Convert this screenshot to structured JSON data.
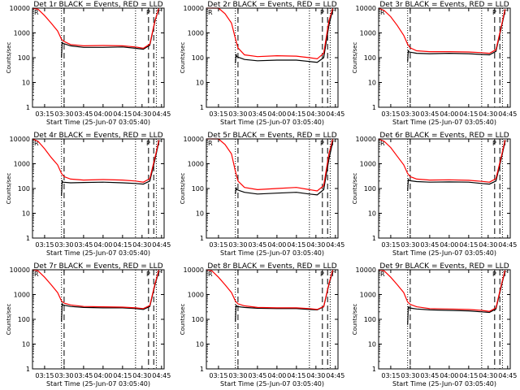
{
  "figure": {
    "ylabel": "Counts/sec",
    "xlabel": "Start Time (25-Jun-07 03:05:40)",
    "x_tick_labels": [
      "03:15",
      "03:30",
      "03:45",
      "04:00",
      "04:15",
      "04:30",
      "04:45"
    ],
    "y_tick_labels": [
      "1",
      "10",
      "100",
      "1000",
      "10000"
    ],
    "series_colors": {
      "events": "#000000",
      "lld": "#ff0000"
    }
  },
  "chart_data": [
    {
      "type": "line",
      "title": "Det 1r BLACK = Events, RED = LLD",
      "xlabel": "Start Time (25-Jun-07 03:05:40)",
      "ylabel": "Counts/sec",
      "yscale": "log",
      "ylim": [
        1,
        10000
      ],
      "xlim": [
        "03:05:40",
        "04:47:00"
      ],
      "x_ticks": [
        "03:15",
        "03:30",
        "03:45",
        "04:00",
        "04:15",
        "04:30",
        "04:45"
      ],
      "corner_markers": [
        "R",
        "P",
        "T"
      ],
      "series": [
        {
          "color": "black",
          "x": [
            "03:05:40",
            "03:27",
            "03:28",
            "03:28:30",
            "03:29",
            "03:35",
            "03:45",
            "04:00",
            "04:15",
            "04:25",
            "04:31",
            "04:36",
            "04:40",
            "04:43"
          ],
          "values": [
            null,
            null,
            100,
            430,
            380,
            300,
            260,
            260,
            270,
            240,
            220,
            320,
            3000,
            10000
          ]
        },
        {
          "color": "red",
          "x": [
            "03:05:40",
            "03:10",
            "03:15",
            "03:20",
            "03:25",
            "03:28",
            "03:30",
            "03:35",
            "03:45",
            "04:00",
            "04:15",
            "04:25",
            "04:31",
            "04:36",
            "04:40",
            "04:43"
          ],
          "values": [
            10000,
            9000,
            5000,
            2500,
            1200,
            550,
            450,
            340,
            300,
            310,
            300,
            270,
            240,
            350,
            3200,
            10000
          ]
        }
      ]
    },
    {
      "type": "line",
      "title": "Det 2r BLACK = Events, RED = LLD",
      "xlabel": "Start Time (25-Jun-07 03:05:40)",
      "ylabel": "Counts/sec",
      "yscale": "log",
      "ylim": [
        1,
        10000
      ],
      "xlim": [
        "03:05:40",
        "04:47:00"
      ],
      "x_ticks": [
        "03:15",
        "03:30",
        "03:45",
        "04:00",
        "04:15",
        "04:30",
        "04:45"
      ],
      "corner_markers": [
        "R",
        "P",
        "T"
      ],
      "series": [
        {
          "color": "black",
          "x": [
            "03:05:40",
            "03:27",
            "03:28",
            "03:28:30",
            "03:29",
            "03:35",
            "03:45",
            "04:00",
            "04:15",
            "04:25",
            "04:31",
            "04:36",
            "04:40",
            "04:43"
          ],
          "values": [
            null,
            null,
            60,
            140,
            110,
            85,
            75,
            80,
            80,
            70,
            65,
            100,
            2000,
            9000
          ]
        },
        {
          "color": "red",
          "x": [
            "03:05:40",
            "03:10",
            "03:15",
            "03:20",
            "03:25",
            "03:28",
            "03:30",
            "03:35",
            "03:45",
            "04:00",
            "04:15",
            "04:25",
            "04:31",
            "04:36",
            "04:40",
            "04:43"
          ],
          "values": [
            10000,
            10000,
            10000,
            6000,
            2500,
            600,
            250,
            130,
            110,
            120,
            115,
            100,
            90,
            150,
            3000,
            10000
          ]
        }
      ]
    },
    {
      "type": "line",
      "title": "Det 3r BLACK = Events, RED = LLD",
      "xlabel": "Start Time (25-Jun-07 03:05:40)",
      "ylabel": "Counts/sec",
      "yscale": "log",
      "ylim": [
        1,
        10000
      ],
      "xlim": [
        "03:05:40",
        "04:47:00"
      ],
      "x_ticks": [
        "03:15",
        "03:30",
        "03:45",
        "04:00",
        "04:15",
        "04:30",
        "04:45"
      ],
      "corner_markers": [
        "R",
        "P",
        "T"
      ],
      "series": [
        {
          "color": "black",
          "x": [
            "03:05:40",
            "03:27",
            "03:28",
            "03:28:30",
            "03:29",
            "03:35",
            "03:45",
            "04:00",
            "04:15",
            "04:25",
            "04:31",
            "04:36",
            "04:40",
            "04:43"
          ],
          "values": [
            null,
            null,
            70,
            200,
            170,
            150,
            145,
            150,
            145,
            135,
            130,
            180,
            1500,
            8000
          ]
        },
        {
          "color": "red",
          "x": [
            "03:05:40",
            "03:10",
            "03:15",
            "03:20",
            "03:25",
            "03:28",
            "03:30",
            "03:35",
            "03:45",
            "04:00",
            "04:15",
            "04:25",
            "04:31",
            "04:36",
            "04:40",
            "04:43"
          ],
          "values": [
            10000,
            8000,
            4500,
            2000,
            800,
            350,
            250,
            190,
            175,
            175,
            170,
            160,
            150,
            210,
            1700,
            9000
          ]
        }
      ]
    },
    {
      "type": "line",
      "title": "Det 4r BLACK = Events, RED = LLD",
      "xlabel": "Start Time (25-Jun-07 03:05:40)",
      "ylabel": "Counts/sec",
      "yscale": "log",
      "ylim": [
        1,
        10000
      ],
      "xlim": [
        "03:05:40",
        "04:47:00"
      ],
      "x_ticks": [
        "03:15",
        "03:30",
        "03:45",
        "04:00",
        "04:15",
        "04:30",
        "04:45"
      ],
      "corner_markers": [
        "R",
        "P",
        "T"
      ],
      "series": [
        {
          "color": "black",
          "x": [
            "03:05:40",
            "03:27",
            "03:28",
            "03:28:30",
            "03:29",
            "03:35",
            "03:45",
            "04:00",
            "04:15",
            "04:25",
            "04:31",
            "04:36",
            "04:40",
            "04:43"
          ],
          "values": [
            null,
            null,
            50,
            200,
            180,
            170,
            175,
            180,
            170,
            160,
            150,
            200,
            1500,
            8000
          ]
        },
        {
          "color": "red",
          "x": [
            "03:05:40",
            "03:10",
            "03:15",
            "03:20",
            "03:25",
            "03:28",
            "03:30",
            "03:35",
            "03:45",
            "04:00",
            "04:15",
            "04:25",
            "04:31",
            "04:36",
            "04:40",
            "04:43"
          ],
          "values": [
            10000,
            8000,
            4000,
            1800,
            900,
            400,
            300,
            240,
            220,
            230,
            220,
            200,
            180,
            250,
            1800,
            9000
          ]
        }
      ]
    },
    {
      "type": "line",
      "title": "Det 5r BLACK = Events, RED = LLD",
      "xlabel": "Start Time (25-Jun-07 03:05:40)",
      "ylabel": "Counts/sec",
      "yscale": "log",
      "ylim": [
        1,
        10000
      ],
      "xlim": [
        "03:05:40",
        "04:47:00"
      ],
      "x_ticks": [
        "03:15",
        "03:30",
        "03:45",
        "04:00",
        "04:15",
        "04:30",
        "04:45"
      ],
      "corner_markers": [
        "R",
        "P",
        "T"
      ],
      "series": [
        {
          "color": "black",
          "x": [
            "03:05:40",
            "03:27",
            "03:28",
            "03:28:30",
            "03:29",
            "03:35",
            "03:45",
            "04:00",
            "04:15",
            "04:25",
            "04:31",
            "04:36",
            "04:40",
            "04:43"
          ],
          "values": [
            null,
            null,
            60,
            110,
            90,
            70,
            60,
            65,
            70,
            60,
            55,
            90,
            1500,
            8000
          ]
        },
        {
          "color": "red",
          "x": [
            "03:05:40",
            "03:10",
            "03:15",
            "03:20",
            "03:25",
            "03:28",
            "03:30",
            "03:35",
            "03:45",
            "04:00",
            "04:15",
            "04:25",
            "04:31",
            "04:36",
            "04:40",
            "04:43"
          ],
          "values": [
            10000,
            10000,
            10000,
            6000,
            2500,
            500,
            200,
            110,
            90,
            100,
            110,
            90,
            80,
            130,
            2500,
            10000
          ]
        }
      ]
    },
    {
      "type": "line",
      "title": "Det 6r BLACK = Events, RED = LLD",
      "xlabel": "Start Time (25-Jun-07 03:05:40)",
      "ylabel": "Counts/sec",
      "yscale": "log",
      "ylim": [
        1,
        10000
      ],
      "xlim": [
        "03:05:40",
        "04:47:00"
      ],
      "x_ticks": [
        "03:15",
        "03:30",
        "03:45",
        "04:00",
        "04:15",
        "04:30",
        "04:45"
      ],
      "corner_markers": [
        "R",
        "P",
        "T"
      ],
      "series": [
        {
          "color": "black",
          "x": [
            "03:05:40",
            "03:27",
            "03:28",
            "03:28:30",
            "03:29",
            "03:35",
            "03:45",
            "04:00",
            "04:15",
            "04:25",
            "04:31",
            "04:36",
            "04:40",
            "04:43"
          ],
          "values": [
            null,
            null,
            80,
            230,
            210,
            190,
            180,
            185,
            180,
            160,
            150,
            200,
            1500,
            8000
          ]
        },
        {
          "color": "red",
          "x": [
            "03:05:40",
            "03:10",
            "03:15",
            "03:20",
            "03:25",
            "03:28",
            "03:30",
            "03:35",
            "03:45",
            "04:00",
            "04:15",
            "04:25",
            "04:31",
            "04:36",
            "04:40",
            "04:43"
          ],
          "values": [
            10000,
            8000,
            4500,
            2000,
            900,
            400,
            300,
            240,
            220,
            225,
            215,
            195,
            180,
            250,
            1800,
            9000
          ]
        }
      ]
    },
    {
      "type": "line",
      "title": "Det 7r BLACK = Events, RED = LLD",
      "xlabel": "Start Time (25-Jun-07 03:05:40)",
      "ylabel": "Counts/sec",
      "yscale": "log",
      "ylim": [
        1,
        10000
      ],
      "xlim": [
        "03:05:40",
        "04:47:00"
      ],
      "x_ticks": [
        "03:15",
        "03:30",
        "03:45",
        "04:00",
        "04:15",
        "04:30",
        "04:45"
      ],
      "corner_markers": [
        "R",
        "P",
        "T"
      ],
      "series": [
        {
          "color": "black",
          "x": [
            "03:05:40",
            "03:27",
            "03:28",
            "03:28:30",
            "03:29",
            "03:35",
            "03:45",
            "04:00",
            "04:15",
            "04:25",
            "04:31",
            "04:36",
            "04:40",
            "04:43"
          ],
          "values": [
            null,
            null,
            80,
            420,
            380,
            330,
            300,
            290,
            290,
            270,
            250,
            330,
            2500,
            9000
          ]
        },
        {
          "color": "red",
          "x": [
            "03:05:40",
            "03:10",
            "03:15",
            "03:20",
            "03:25",
            "03:28",
            "03:30",
            "03:35",
            "03:45",
            "04:00",
            "04:15",
            "04:25",
            "04:31",
            "04:36",
            "04:40",
            "04:43"
          ],
          "values": [
            10000,
            9000,
            5000,
            2500,
            1200,
            550,
            450,
            380,
            330,
            320,
            310,
            290,
            270,
            360,
            2800,
            10000
          ]
        }
      ]
    },
    {
      "type": "line",
      "title": "Det 8r BLACK = Events, RED = LLD",
      "xlabel": "Start Time (25-Jun-07 03:05:40)",
      "ylabel": "Counts/sec",
      "yscale": "log",
      "ylim": [
        1,
        10000
      ],
      "xlim": [
        "03:05:40",
        "04:47:00"
      ],
      "x_ticks": [
        "03:15",
        "03:30",
        "03:45",
        "04:00",
        "04:15",
        "04:30",
        "04:45"
      ],
      "corner_markers": [
        "R",
        "P",
        "T"
      ],
      "series": [
        {
          "color": "black",
          "x": [
            "03:05:40",
            "03:27",
            "03:28",
            "03:28:30",
            "03:29",
            "03:35",
            "03:45",
            "04:00",
            "04:15",
            "04:25",
            "04:31",
            "04:36",
            "04:40",
            "04:43"
          ],
          "values": [
            null,
            null,
            80,
            380,
            330,
            300,
            280,
            270,
            270,
            250,
            240,
            320,
            2500,
            9000
          ]
        },
        {
          "color": "red",
          "x": [
            "03:05:40",
            "03:10",
            "03:15",
            "03:20",
            "03:25",
            "03:28",
            "03:30",
            "03:35",
            "03:45",
            "04:00",
            "04:15",
            "04:25",
            "04:31",
            "04:36",
            "04:40",
            "04:43"
          ],
          "values": [
            10000,
            9000,
            5000,
            2500,
            1200,
            550,
            420,
            350,
            300,
            290,
            290,
            270,
            250,
            330,
            2700,
            10000
          ]
        }
      ]
    },
    {
      "type": "line",
      "title": "Det 9r BLACK = Events, RED = LLD",
      "xlabel": "Start Time (25-Jun-07 03:05:40)",
      "ylabel": "Counts/sec",
      "yscale": "log",
      "ylim": [
        1,
        10000
      ],
      "xlim": [
        "03:05:40",
        "04:47:00"
      ],
      "x_ticks": [
        "03:15",
        "03:30",
        "03:45",
        "04:00",
        "04:15",
        "04:30",
        "04:45"
      ],
      "corner_markers": [
        "R",
        "P",
        "T"
      ],
      "series": [
        {
          "color": "black",
          "x": [
            "03:05:40",
            "03:27",
            "03:28",
            "03:28:30",
            "03:29",
            "03:35",
            "03:45",
            "04:00",
            "04:15",
            "04:25",
            "04:31",
            "04:36",
            "04:40",
            "04:43"
          ],
          "values": [
            null,
            null,
            60,
            330,
            290,
            260,
            240,
            230,
            220,
            200,
            190,
            260,
            2000,
            9000
          ]
        },
        {
          "color": "red",
          "x": [
            "03:05:40",
            "03:10",
            "03:15",
            "03:20",
            "03:25",
            "03:28",
            "03:30",
            "03:35",
            "03:45",
            "04:00",
            "04:15",
            "04:25",
            "04:31",
            "04:36",
            "04:40",
            "04:43"
          ],
          "values": [
            10000,
            9000,
            5000,
            2500,
            1200,
            500,
            400,
            320,
            270,
            260,
            250,
            230,
            210,
            290,
            2300,
            9500
          ]
        }
      ]
    }
  ],
  "vlines": {
    "dotted": [
      "03:28",
      "04:25",
      "04:41"
    ],
    "dashed": [
      "03:30",
      "04:35",
      "04:39"
    ]
  }
}
